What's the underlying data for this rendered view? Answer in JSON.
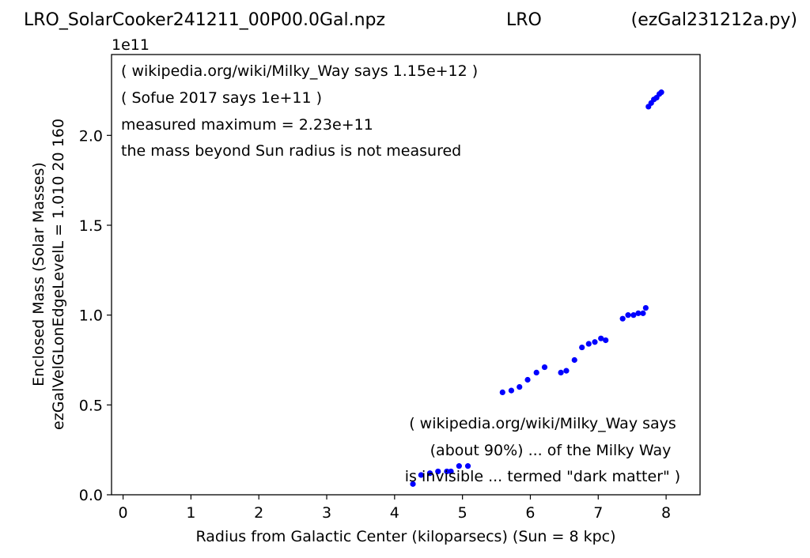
{
  "header": {
    "file": "LRO_SolarCooker241211_00P00.0Gal.npz",
    "site": "LRO",
    "script": "(ezGal231212a.py)"
  },
  "chart_data": {
    "type": "scatter",
    "xlabel": "Radius from Galactic Center (kiloparsecs)  (Sun = 8 kpc)",
    "ylabel_line1": "Enclosed Mass (Solar Masses)",
    "ylabel_line2": "ezGalVelGLonEdgeLevelL = 1.010  20  160",
    "y_offset_label": "1e11",
    "xlim": [
      -0.17,
      8.5
    ],
    "ylim": [
      0,
      2.45
    ],
    "x_ticks": [
      0,
      1,
      2,
      3,
      4,
      5,
      6,
      7,
      8
    ],
    "x_tick_labels": [
      "0",
      "1",
      "2",
      "3",
      "4",
      "5",
      "6",
      "7",
      "8"
    ],
    "y_ticks": [
      0,
      0.5,
      1.0,
      1.5,
      2.0
    ],
    "y_tick_labels": [
      "0.0",
      "0.5",
      "1.0",
      "1.5",
      "2.0"
    ],
    "grid": false,
    "marker_color": "#0000ff",
    "annotations_top": [
      "( wikipedia.org/wiki/Milky_Way says 1.15e+12 )",
      "( Sofue 2017 says 1e+11 )",
      "measured maximum = 2.23e+11",
      "the mass beyond Sun radius is not measured"
    ],
    "annotations_bottom": [
      "( wikipedia.org/wiki/Milky_Way says",
      "(about 90%) ... of the Milky Way",
      "is invisible ... termed \"dark matter\" )"
    ],
    "series": [
      {
        "x": [
          4.27,
          4.39,
          4.52,
          4.64,
          4.77,
          4.83,
          4.95,
          5.08,
          5.59,
          5.72,
          5.84,
          5.96,
          6.09,
          6.21,
          6.45,
          6.53,
          6.65,
          6.76,
          6.86,
          6.95,
          7.04,
          7.11,
          7.36,
          7.44,
          7.52,
          7.59,
          7.66,
          7.7,
          7.74,
          7.78,
          7.82,
          7.86,
          7.9,
          7.93
        ],
        "y": [
          0.06,
          0.11,
          0.12,
          0.13,
          0.13,
          0.13,
          0.16,
          0.16,
          0.57,
          0.58,
          0.6,
          0.64,
          0.68,
          0.71,
          0.68,
          0.69,
          0.75,
          0.82,
          0.84,
          0.85,
          0.87,
          0.86,
          0.98,
          1.0,
          1.0,
          1.01,
          1.01,
          1.04,
          2.16,
          2.18,
          2.2,
          2.21,
          2.23,
          2.24
        ]
      }
    ]
  }
}
